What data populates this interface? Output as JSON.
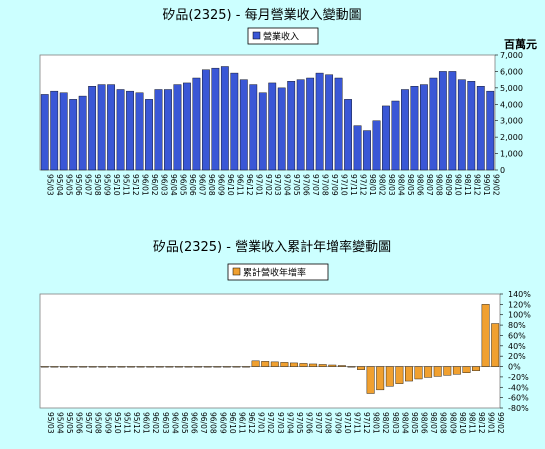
{
  "chart_data": [
    {
      "type": "bar",
      "title": "矽品(2325) - 每月營業收入變動圖",
      "legend": "營業收入",
      "unit_label": "百萬元",
      "ylim": [
        0,
        7000
      ],
      "yticks": [
        "0",
        "1,000",
        "2,000",
        "3,000",
        "4,000",
        "5,000",
        "6,000",
        "7,000"
      ],
      "bar_color": "#3a57d6",
      "categories": [
        "95/03",
        "95/04",
        "95/05",
        "95/06",
        "95/07",
        "95/08",
        "95/09",
        "95/10",
        "95/11",
        "95/12",
        "96/01",
        "96/02",
        "96/03",
        "96/04",
        "96/05",
        "96/06",
        "96/07",
        "96/08",
        "96/09",
        "96/10",
        "96/11",
        "96/12",
        "97/01",
        "97/02",
        "97/03",
        "97/04",
        "97/05",
        "97/06",
        "97/07",
        "97/08",
        "97/09",
        "97/10",
        "97/11",
        "97/12",
        "98/01",
        "98/02",
        "98/03",
        "98/04",
        "98/05",
        "98/06",
        "98/07",
        "98/08",
        "98/09",
        "98/10",
        "98/11",
        "98/12",
        "99/01",
        "99/02"
      ],
      "values": [
        4600,
        4800,
        4700,
        4300,
        4500,
        5100,
        5200,
        5200,
        4900,
        4800,
        4700,
        4300,
        4900,
        4900,
        5200,
        5300,
        5600,
        6100,
        6200,
        6300,
        5900,
        5500,
        5200,
        4700,
        5300,
        5000,
        5400,
        5500,
        5600,
        5900,
        5800,
        5600,
        4300,
        2700,
        2400,
        3000,
        3900,
        4200,
        4900,
        5100,
        5200,
        5600,
        6000,
        6000,
        5500,
        5400,
        5100,
        4800
      ]
    },
    {
      "type": "bar",
      "title": "矽品(2325) -  營業收入累計年增率變動圖",
      "legend": "累計營收年增率",
      "ylim": [
        -80,
        140
      ],
      "yticks": [
        "-80%",
        "-60%",
        "-40%",
        "-20%",
        "0%",
        "20%",
        "40%",
        "60%",
        "80%",
        "100%",
        "120%",
        "140%"
      ],
      "bar_color": "#f0a030",
      "categories": [
        "95/03",
        "95/04",
        "95/05",
        "95/06",
        "95/07",
        "95/08",
        "95/09",
        "95/10",
        "95/11",
        "95/12",
        "96/01",
        "96/02",
        "96/03",
        "96/04",
        "96/05",
        "96/06",
        "96/07",
        "96/08",
        "96/09",
        "96/10",
        "96/11",
        "96/12",
        "97/01",
        "97/02",
        "97/03",
        "97/04",
        "97/05",
        "97/06",
        "97/07",
        "97/08",
        "97/09",
        "97/10",
        "97/11",
        "97/12",
        "98/01",
        "98/02",
        "98/03",
        "98/04",
        "98/05",
        "98/06",
        "98/07",
        "98/08",
        "98/09",
        "98/10",
        "98/11",
        "98/12",
        "99/01",
        "99/02"
      ],
      "values": [
        0,
        0,
        0,
        0,
        0,
        0,
        0,
        0,
        0,
        0,
        0,
        0,
        0,
        0,
        0,
        0,
        0,
        0,
        0,
        0,
        0,
        0,
        11,
        10,
        9,
        8,
        7,
        6,
        5,
        4,
        3,
        2,
        0,
        -6,
        -52,
        -45,
        -38,
        -33,
        -28,
        -24,
        -21,
        -19,
        -17,
        -15,
        -12,
        -8,
        120,
        83
      ]
    }
  ]
}
